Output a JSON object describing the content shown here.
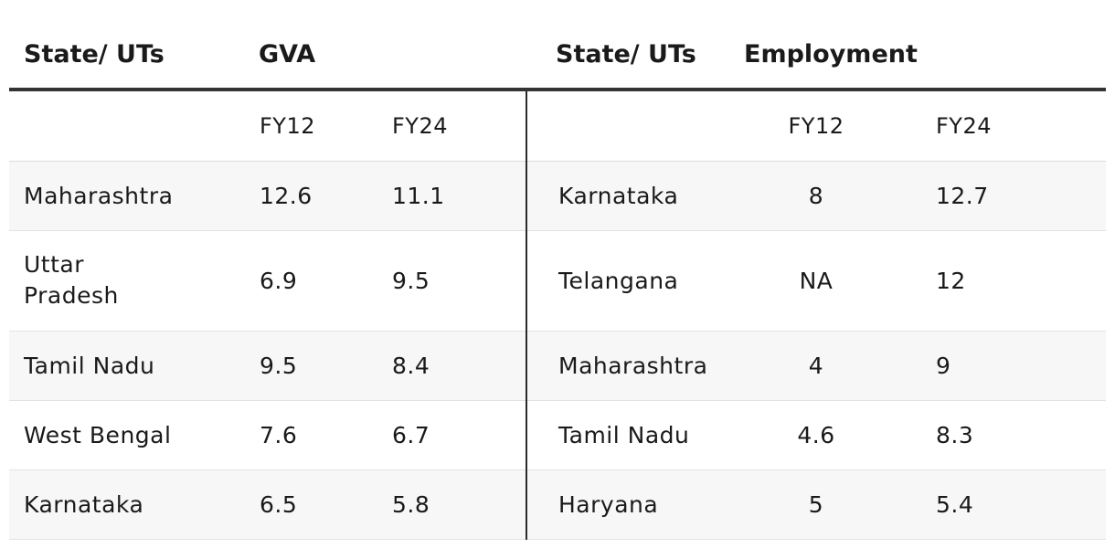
{
  "headers": {
    "left_state": "State/ UTs",
    "gva": "GVA",
    "right_state": "State/ UTs",
    "employment": "Employment"
  },
  "subheaders": {
    "gva_fy12": "FY12",
    "gva_fy24": "FY24",
    "emp_fy12": "FY12",
    "emp_fy24": "FY24"
  },
  "rows": [
    {
      "gva_state": "Maharashtra",
      "gva_fy12": "12.6",
      "gva_fy24": "11.1",
      "emp_state": "Karnataka",
      "emp_fy12": "8",
      "emp_fy24": "12.7"
    },
    {
      "gva_state": "Uttar Pradesh",
      "gva_fy12": "6.9",
      "gva_fy24": "9.5",
      "emp_state": "Telangana",
      "emp_fy12": "NA",
      "emp_fy24": "12"
    },
    {
      "gva_state": "Tamil Nadu",
      "gva_fy12": "9.5",
      "gva_fy24": "8.4",
      "emp_state": "Maharashtra",
      "emp_fy12": "4",
      "emp_fy24": "9"
    },
    {
      "gva_state": "West Bengal",
      "gva_fy12": "7.6",
      "gva_fy24": "6.7",
      "emp_state": "Tamil Nadu",
      "emp_fy12": "4.6",
      "emp_fy24": "8.3"
    },
    {
      "gva_state": "Karnataka",
      "gva_fy12": "6.5",
      "gva_fy24": "5.8",
      "emp_state": "Haryana",
      "emp_fy12": "5",
      "emp_fy24": "5.4"
    }
  ]
}
